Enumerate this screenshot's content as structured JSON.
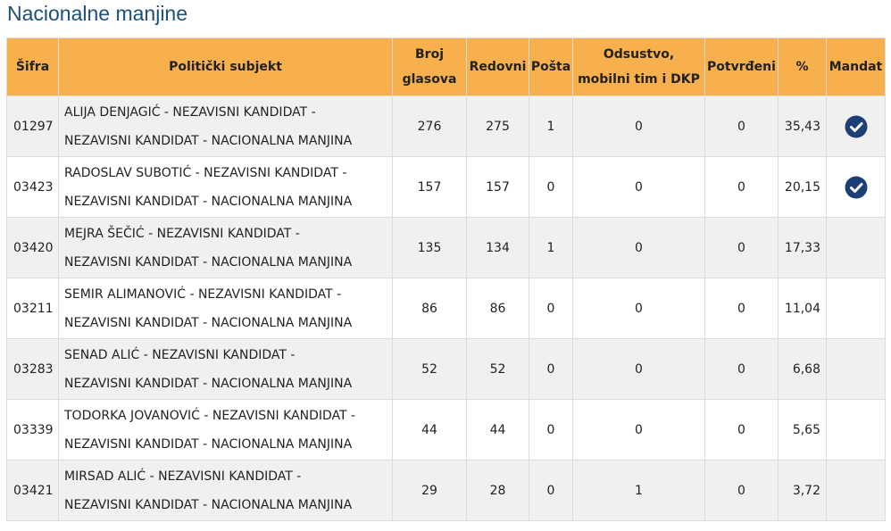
{
  "header": {
    "title": "Nacionalne manjine"
  },
  "table": {
    "columns": [
      [
        "Šifra"
      ],
      [
        "Politički subjekt"
      ],
      [
        "Broj",
        "glasova"
      ],
      [
        "Redovni"
      ],
      [
        "Pošta"
      ],
      [
        "Odsustvo,",
        "mobilni tim i DKP"
      ],
      [
        "Potvrđeni"
      ],
      [
        "%"
      ],
      [
        "Mandat"
      ]
    ],
    "rows": [
      {
        "sifra": "01297",
        "subjekt": [
          "ALIJA DENJAGIĆ - NEZAVISNI KANDIDAT -",
          "NEZAVISNI KANDIDAT - NACIONALNA MANJINA"
        ],
        "broj_glasova": "276",
        "redovni": "275",
        "posta": "1",
        "odsustvo": "0",
        "potvrdjeni": "0",
        "procenat": "35,43",
        "mandat": true
      },
      {
        "sifra": "03423",
        "subjekt": [
          "RADOSLAV SUBOTIĆ - NEZAVISNI KANDIDAT -",
          "NEZAVISNI KANDIDAT - NACIONALNA MANJINA"
        ],
        "broj_glasova": "157",
        "redovni": "157",
        "posta": "0",
        "odsustvo": "0",
        "potvrdjeni": "0",
        "procenat": "20,15",
        "mandat": true
      },
      {
        "sifra": "03420",
        "subjekt": [
          "MEJRA ŠEČIĆ - NEZAVISNI KANDIDAT -",
          "NEZAVISNI KANDIDAT - NACIONALNA MANJINA"
        ],
        "broj_glasova": "135",
        "redovni": "134",
        "posta": "1",
        "odsustvo": "0",
        "potvrdjeni": "0",
        "procenat": "17,33",
        "mandat": false
      },
      {
        "sifra": "03211",
        "subjekt": [
          "SEMIR ALIMANOVIĆ - NEZAVISNI KANDIDAT -",
          "NEZAVISNI KANDIDAT - NACIONALNA MANJINA"
        ],
        "broj_glasova": "86",
        "redovni": "86",
        "posta": "0",
        "odsustvo": "0",
        "potvrdjeni": "0",
        "procenat": "11,04",
        "mandat": false
      },
      {
        "sifra": "03283",
        "subjekt": [
          "SENAD ALIĆ - NEZAVISNI KANDIDAT -",
          "NEZAVISNI KANDIDAT - NACIONALNA MANJINA"
        ],
        "broj_glasova": "52",
        "redovni": "52",
        "posta": "0",
        "odsustvo": "0",
        "potvrdjeni": "0",
        "procenat": "6,68",
        "mandat": false
      },
      {
        "sifra": "03339",
        "subjekt": [
          "TODORKA JOVANOVIĆ - NEZAVISNI KANDIDAT -",
          "NEZAVISNI KANDIDAT - NACIONALNA MANJINA"
        ],
        "broj_glasova": "44",
        "redovni": "44",
        "posta": "0",
        "odsustvo": "0",
        "potvrdjeni": "0",
        "procenat": "5,65",
        "mandat": false
      },
      {
        "sifra": "03421",
        "subjekt": [
          "MIRSAD ALIĆ - NEZAVISNI KANDIDAT -",
          "NEZAVISNI KANDIDAT - NACIONALNA MANJINA"
        ],
        "broj_glasova": "29",
        "redovni": "28",
        "posta": "0",
        "odsustvo": "1",
        "potvrdjeni": "0",
        "procenat": "3,72",
        "mandat": false
      }
    ]
  }
}
